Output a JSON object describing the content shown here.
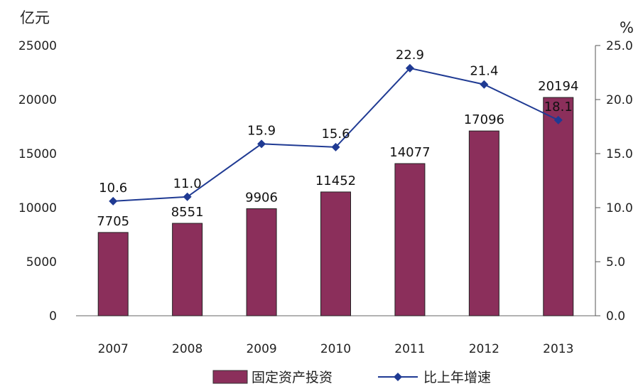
{
  "chart_data": {
    "type": "bar+line",
    "categories": [
      "2007",
      "2008",
      "2009",
      "2010",
      "2011",
      "2012",
      "2013"
    ],
    "series": [
      {
        "name": "固定资产投资",
        "type": "bar",
        "axis": "left",
        "color": "#8B2F5B",
        "values": [
          7705,
          8551,
          9906,
          11452,
          14077,
          17096,
          20194
        ],
        "labels": [
          "7705",
          "8551",
          "9906",
          "11452",
          "14077",
          "17096",
          "20194"
        ]
      },
      {
        "name": "比上年增速",
        "type": "line",
        "axis": "right",
        "color": "#1F3A93",
        "values": [
          10.6,
          11.0,
          15.9,
          15.6,
          22.9,
          21.4,
          18.1
        ],
        "labels": [
          "10.6",
          "11.0",
          "15.9",
          "15.6",
          "22.9",
          "21.4",
          "18.1"
        ]
      }
    ],
    "y_left": {
      "unit": "亿元",
      "min": 0,
      "max": 25000,
      "ticks": [
        "25000",
        "20000",
        "15000",
        "10000",
        "5000",
        "0"
      ]
    },
    "y_right": {
      "unit": "%",
      "min": 0,
      "max": 25,
      "ticks": [
        "25.0",
        "20.0",
        "15.0",
        "10.0",
        "5.0",
        "0.0"
      ]
    },
    "legend": {
      "position": "bottom",
      "items": [
        "固定资产投资",
        "比上年增速"
      ]
    },
    "grid": false
  }
}
